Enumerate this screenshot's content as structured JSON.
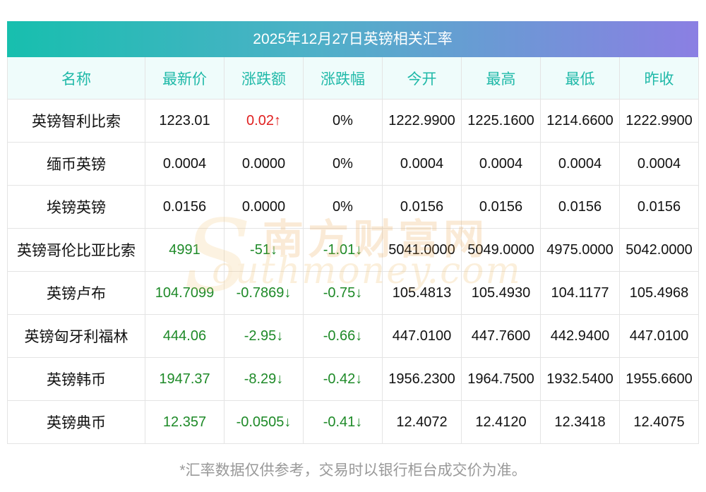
{
  "title": "2025年12月27日英镑相关汇率",
  "columns": [
    "名称",
    "最新价",
    "涨跌额",
    "涨跌幅",
    "今开",
    "最高",
    "最低",
    "昨收"
  ],
  "rows": [
    {
      "name": "英镑智利比索",
      "latest": "1223.01",
      "change": "0.02↑",
      "change_pct": "0%",
      "open": "1222.9900",
      "high": "1225.1600",
      "low": "1214.6600",
      "prev_close": "1222.9900",
      "trend": "up"
    },
    {
      "name": "缅币英镑",
      "latest": "0.0004",
      "change": "0.0000",
      "change_pct": "0%",
      "open": "0.0004",
      "high": "0.0004",
      "low": "0.0004",
      "prev_close": "0.0004",
      "trend": "flat"
    },
    {
      "name": "埃镑英镑",
      "latest": "0.0156",
      "change": "0.0000",
      "change_pct": "0%",
      "open": "0.0156",
      "high": "0.0156",
      "low": "0.0156",
      "prev_close": "0.0156",
      "trend": "flat"
    },
    {
      "name": "英镑哥伦比亚比索",
      "latest": "4991",
      "change": "-51↓",
      "change_pct": "-1.01↓",
      "open": "5041.0000",
      "high": "5049.0000",
      "low": "4975.0000",
      "prev_close": "5042.0000",
      "trend": "down"
    },
    {
      "name": "英镑卢布",
      "latest": "104.7099",
      "change": "-0.7869↓",
      "change_pct": "-0.75↓",
      "open": "105.4813",
      "high": "105.4930",
      "low": "104.1177",
      "prev_close": "105.4968",
      "trend": "down"
    },
    {
      "name": "英镑匈牙利福林",
      "latest": "444.06",
      "change": "-2.95↓",
      "change_pct": "-0.66↓",
      "open": "447.0100",
      "high": "447.7600",
      "low": "442.9400",
      "prev_close": "447.0100",
      "trend": "down"
    },
    {
      "name": "英镑韩币",
      "latest": "1947.37",
      "change": "-8.29↓",
      "change_pct": "-0.42↓",
      "open": "1956.2300",
      "high": "1964.7500",
      "low": "1932.5400",
      "prev_close": "1955.6600",
      "trend": "down"
    },
    {
      "name": "英镑典币",
      "latest": "12.357",
      "change": "-0.0505↓",
      "change_pct": "-0.41↓",
      "open": "12.4072",
      "high": "12.4120",
      "low": "12.3418",
      "prev_close": "12.4075",
      "trend": "down"
    }
  ],
  "watermark": {
    "cn": "南方财富网",
    "en": "outhmoney.com",
    "initial": "S"
  },
  "footnote": "*汇率数据仅供参考，交易时以银行柜台成交价为准。",
  "colors": {
    "header_text": "#1fb9a8",
    "up": "#e02020",
    "down": "#1e8a28",
    "gradient_start": "#17bfae",
    "gradient_end": "#8b7fe3"
  }
}
